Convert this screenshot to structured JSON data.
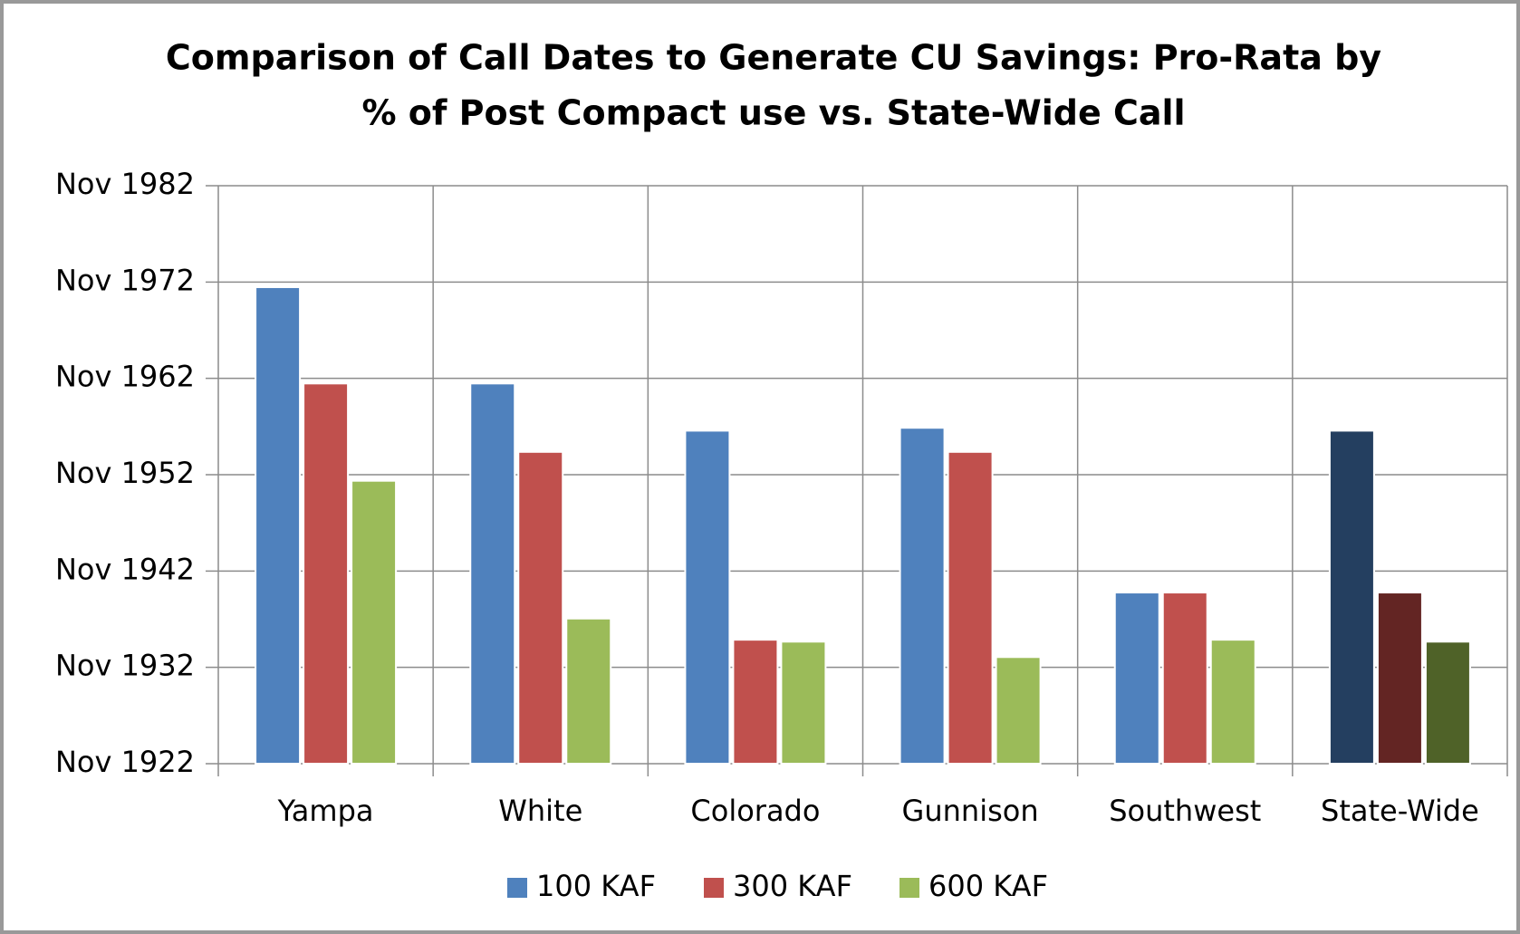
{
  "chart_data": {
    "type": "bar",
    "title": [
      "Comparison of Call Dates to Generate CU Savings: Pro-Rata by",
      "% of Post Compact use vs. State-Wide Call"
    ],
    "categories": [
      "Yampa",
      "White",
      "Colorado",
      "Gunnison",
      "Southwest",
      "State-Wide"
    ],
    "series": [
      {
        "name": "100 KAF",
        "color": "#4f81bd",
        "colors": [
          "#4f81bd",
          "#4f81bd",
          "#4f81bd",
          "#4f81bd",
          "#4f81bd",
          "#243f60"
        ],
        "values": [
          1972.3,
          1962.3,
          1957.4,
          1957.7,
          1940.6,
          1957.4
        ]
      },
      {
        "name": "300 KAF",
        "color": "#c0504d",
        "colors": [
          "#c0504d",
          "#c0504d",
          "#c0504d",
          "#c0504d",
          "#c0504d",
          "#632523"
        ],
        "values": [
          1962.3,
          1955.2,
          1935.7,
          1955.2,
          1940.6,
          1940.6
        ]
      },
      {
        "name": "600 KAF",
        "color": "#9bbb59",
        "colors": [
          "#9bbb59",
          "#9bbb59",
          "#9bbb59",
          "#9bbb59",
          "#9bbb59",
          "#4f6228"
        ],
        "values": [
          1952.2,
          1937.9,
          1935.5,
          1933.9,
          1935.7,
          1935.5
        ]
      }
    ],
    "ylim": [
      1922.83,
      1982.83
    ],
    "yticks": [
      {
        "value": 1922.83,
        "label": "Nov 1922"
      },
      {
        "value": 1932.83,
        "label": "Nov 1932"
      },
      {
        "value": 1942.83,
        "label": "Nov 1942"
      },
      {
        "value": 1952.83,
        "label": "Nov 1952"
      },
      {
        "value": 1962.83,
        "label": "Nov 1962"
      },
      {
        "value": 1972.83,
        "label": "Nov 1972"
      },
      {
        "value": 1982.83,
        "label": "Nov 1982"
      }
    ],
    "grid": true,
    "legend": "bottom"
  }
}
